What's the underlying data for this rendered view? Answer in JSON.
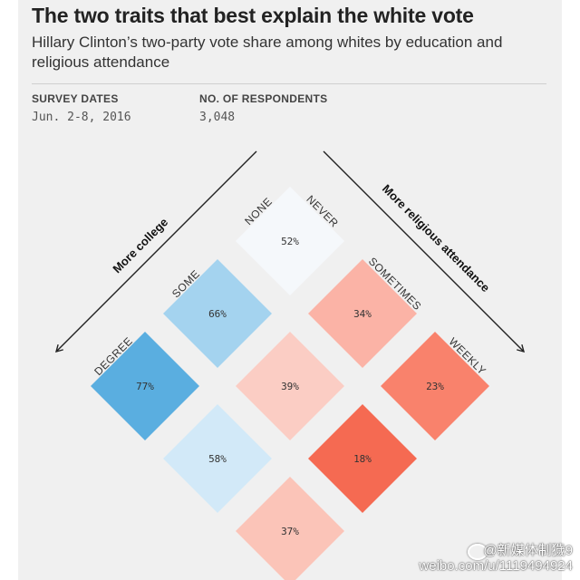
{
  "header": {
    "title": "The two traits that best explain the white vote",
    "subtitle": "Hillary Clinton’s two-party vote share among whites by education and religious attendance"
  },
  "meta": {
    "survey_dates_label": "SURVEY DATES",
    "survey_dates_value": "Jun. 2-8, 2016",
    "respondents_label": "NO. OF RESPONDENTS",
    "respondents_value": "3,048"
  },
  "chart_data": {
    "type": "heatmap",
    "value_label_suffix": "%",
    "education": {
      "axis_label": "More college",
      "levels": [
        "NONE",
        "SOME",
        "DEGREE"
      ]
    },
    "religious_attendance": {
      "axis_label": "More religious attendance",
      "levels": [
        "NEVER",
        "SOMETIMES",
        "WEEKLY"
      ]
    },
    "cells": [
      {
        "education": "NONE",
        "attendance": "NEVER",
        "value": 52,
        "color": "#f5f8fb"
      },
      {
        "education": "SOME",
        "attendance": "NEVER",
        "value": 66,
        "color": "#a4d3ef"
      },
      {
        "education": "DEGREE",
        "attendance": "NEVER",
        "value": 77,
        "color": "#5aaee0"
      },
      {
        "education": "NONE",
        "attendance": "SOMETIMES",
        "value": 34,
        "color": "#fbb3a6"
      },
      {
        "education": "SOME",
        "attendance": "SOMETIMES",
        "value": 39,
        "color": "#fbcdc4"
      },
      {
        "education": "DEGREE",
        "attendance": "SOMETIMES",
        "value": 58,
        "color": "#d2e9f8"
      },
      {
        "education": "NONE",
        "attendance": "WEEKLY",
        "value": 23,
        "color": "#f9826c"
      },
      {
        "education": "SOME",
        "attendance": "WEEKLY",
        "value": 18,
        "color": "#f56a52"
      },
      {
        "education": "DEGREE",
        "attendance": "WEEKLY",
        "value": 37,
        "color": "#fbc4b8"
      }
    ]
  },
  "watermark": {
    "handle": "@新媒体制獩9",
    "url": "weibo.com/u/1119494924"
  }
}
